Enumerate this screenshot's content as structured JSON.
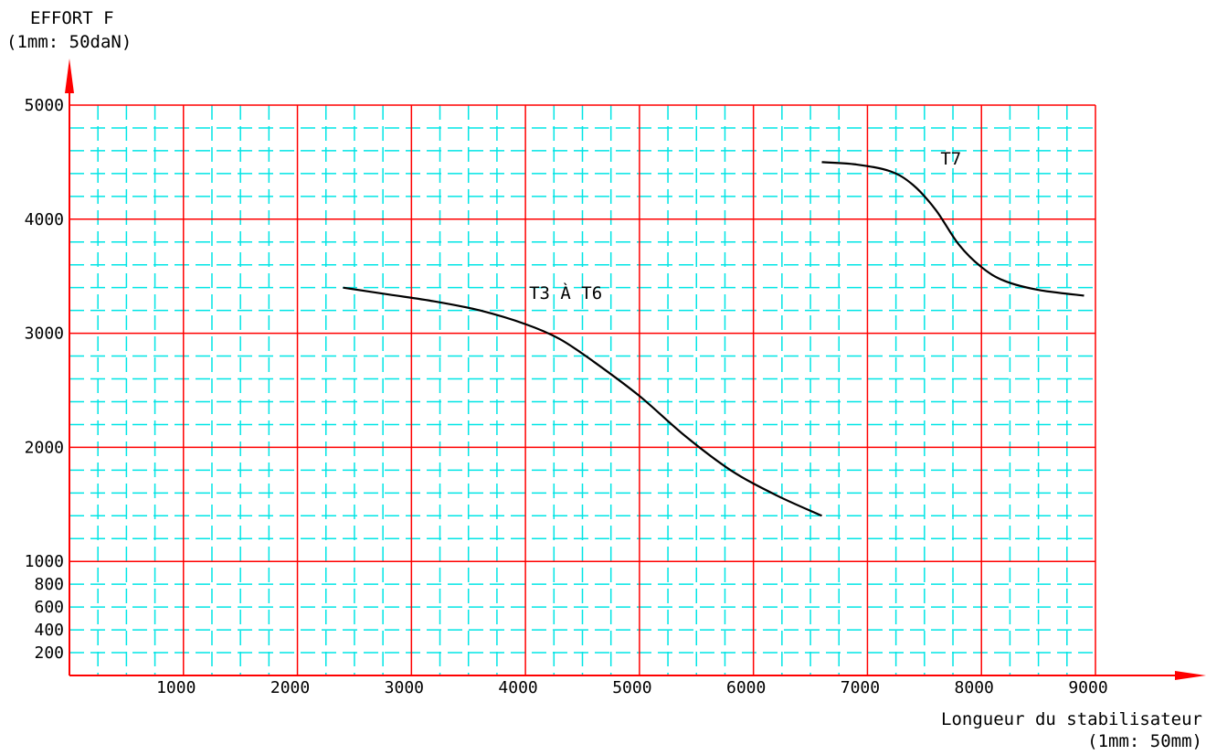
{
  "chart_data": {
    "type": "line",
    "ylabel_lines": [
      "EFFORT F",
      "(1mm: 50daN)"
    ],
    "xlabel_lines": [
      "Longueur du stabilisateur",
      "(1mm: 50mm)"
    ],
    "xlim": [
      0,
      9000
    ],
    "ylim": [
      0,
      5000
    ],
    "x_ticks": [
      1000,
      2000,
      3000,
      4000,
      5000,
      6000,
      7000,
      8000,
      9000
    ],
    "x_tick_labels": [
      "1000",
      "2000",
      "3000",
      "4000",
      "5000",
      "6000",
      "7000",
      "8000",
      "9000"
    ],
    "y_ticks": [
      200,
      400,
      600,
      800,
      1000,
      2000,
      3000,
      4000,
      5000
    ],
    "y_tick_labels": [
      "200",
      "400",
      "600",
      "800",
      "1000",
      "2000",
      "3000",
      "4000",
      "5000"
    ],
    "grid": true,
    "colors": {
      "major_grid": "#ff0000",
      "minor_grid": "#00e5e5",
      "axis_arrow": "#ff0000",
      "curve": "#000000"
    },
    "series": [
      {
        "name": "T3 À T6",
        "x": [
          2400,
          2800,
          3200,
          3600,
          4000,
          4300,
          4600,
          5000,
          5400,
          5800,
          6200,
          6600
        ],
        "y": [
          3400,
          3340,
          3280,
          3200,
          3080,
          2950,
          2750,
          2450,
          2100,
          1800,
          1580,
          1400
        ]
      },
      {
        "name": "T7",
        "x": [
          6600,
          6900,
          7200,
          7400,
          7600,
          7800,
          8000,
          8200,
          8500,
          8900
        ],
        "y": [
          4500,
          4480,
          4420,
          4300,
          4080,
          3780,
          3580,
          3460,
          3380,
          3330
        ]
      }
    ]
  }
}
